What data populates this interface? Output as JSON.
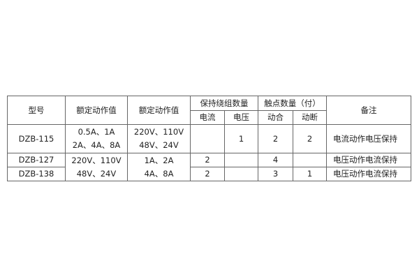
{
  "headers": {
    "model": "型号",
    "rated_value_1": "额定动作值",
    "rated_value_2": "额定动作值",
    "holding_winding_count": "保持绕组数量",
    "current": "电流",
    "voltage": "电压",
    "contact_count": "触点数量（付）",
    "make": "动合",
    "break": "动断",
    "remarks": "备注"
  },
  "rows": [
    {
      "model": "DZB-115",
      "rated1_line1": "0.5A、1A",
      "rated1_line2": "2A、4A、8A",
      "rated2_line1": "220V、110V",
      "rated2_line2": "48V、24V",
      "current": "",
      "voltage": "1",
      "make": "2",
      "break": "2",
      "remarks": "电流动作电压保持"
    },
    {
      "model": "DZB-127",
      "current": "2",
      "voltage": "",
      "make": "4",
      "break": "",
      "remarks": "电压动作电流保持"
    },
    {
      "model": "DZB-138",
      "current": "2",
      "voltage": "",
      "make": "3",
      "break": "1",
      "remarks": "电压动作电流保持"
    }
  ],
  "merged_127_138": {
    "rated1_line1": "220V、110V",
    "rated1_line2": "48V、24V",
    "rated2_line1": "1A、2A",
    "rated2_line2": "4A、8A"
  }
}
